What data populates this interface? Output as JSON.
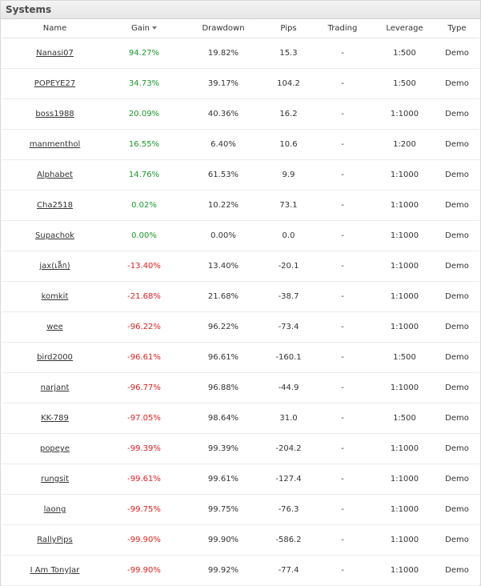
{
  "panel": {
    "title": "Systems"
  },
  "columns": {
    "name": "Name",
    "gain": "Gain",
    "drawdown": "Drawdown",
    "pips": "Pips",
    "trading": "Trading",
    "leverage": "Leverage",
    "type": "Type"
  },
  "colors": {
    "positive": "#1a9a2b",
    "negative": "#e02020"
  },
  "rows": [
    {
      "name": "Nanasi07",
      "gain": "94.27%",
      "sign": "pos",
      "drawdown": "19.82%",
      "pips": "15.3",
      "trading": "-",
      "leverage": "1:500",
      "type": "Demo"
    },
    {
      "name": "POPEYE27",
      "gain": "34.73%",
      "sign": "pos",
      "drawdown": "39.17%",
      "pips": "104.2",
      "trading": "-",
      "leverage": "1:500",
      "type": "Demo"
    },
    {
      "name": "boss1988",
      "gain": "20.09%",
      "sign": "pos",
      "drawdown": "40.36%",
      "pips": "16.2",
      "trading": "-",
      "leverage": "1:1000",
      "type": "Demo"
    },
    {
      "name": "manmenthol",
      "gain": "16.55%",
      "sign": "pos",
      "drawdown": "6.40%",
      "pips": "10.6",
      "trading": "-",
      "leverage": "1:200",
      "type": "Demo"
    },
    {
      "name": "Alphabet",
      "gain": "14.76%",
      "sign": "pos",
      "drawdown": "61.53%",
      "pips": "9.9",
      "trading": "-",
      "leverage": "1:1000",
      "type": "Demo"
    },
    {
      "name": "Cha2518",
      "gain": "0.02%",
      "sign": "pos",
      "drawdown": "10.22%",
      "pips": "73.1",
      "trading": "-",
      "leverage": "1:1000",
      "type": "Demo"
    },
    {
      "name": "Supachok",
      "gain": "0.00%",
      "sign": "zero",
      "drawdown": "0.00%",
      "pips": "0.0",
      "trading": "-",
      "leverage": "1:1000",
      "type": "Demo"
    },
    {
      "name": "jax(เล็ก)",
      "gain": "-13.40%",
      "sign": "neg",
      "drawdown": "13.40%",
      "pips": "-20.1",
      "trading": "-",
      "leverage": "1:1000",
      "type": "Demo"
    },
    {
      "name": "komkit",
      "gain": "-21.68%",
      "sign": "neg",
      "drawdown": "21.68%",
      "pips": "-38.7",
      "trading": "-",
      "leverage": "1:1000",
      "type": "Demo"
    },
    {
      "name": "wee",
      "gain": "-96.22%",
      "sign": "neg",
      "drawdown": "96.22%",
      "pips": "-73.4",
      "trading": "-",
      "leverage": "1:1000",
      "type": "Demo"
    },
    {
      "name": "bird2000",
      "gain": "-96.61%",
      "sign": "neg",
      "drawdown": "96.61%",
      "pips": "-160.1",
      "trading": "-",
      "leverage": "1:500",
      "type": "Demo"
    },
    {
      "name": "narjant",
      "gain": "-96.77%",
      "sign": "neg",
      "drawdown": "96.88%",
      "pips": "-44.9",
      "trading": "-",
      "leverage": "1:1000",
      "type": "Demo"
    },
    {
      "name": "KK-789",
      "gain": "-97.05%",
      "sign": "neg",
      "drawdown": "98.64%",
      "pips": "31.0",
      "trading": "-",
      "leverage": "1:500",
      "type": "Demo"
    },
    {
      "name": "popeye",
      "gain": "-99.39%",
      "sign": "neg",
      "drawdown": "99.39%",
      "pips": "-204.2",
      "trading": "-",
      "leverage": "1:1000",
      "type": "Demo"
    },
    {
      "name": "rungsit",
      "gain": "-99.61%",
      "sign": "neg",
      "drawdown": "99.61%",
      "pips": "-127.4",
      "trading": "-",
      "leverage": "1:1000",
      "type": "Demo"
    },
    {
      "name": "laong",
      "gain": "-99.75%",
      "sign": "neg",
      "drawdown": "99.75%",
      "pips": "-76.3",
      "trading": "-",
      "leverage": "1:1000",
      "type": "Demo"
    },
    {
      "name": "RallyPips",
      "gain": "-99.90%",
      "sign": "neg",
      "drawdown": "99.90%",
      "pips": "-586.2",
      "trading": "-",
      "leverage": "1:1000",
      "type": "Demo"
    },
    {
      "name": "I Am TonyJar",
      "gain": "-99.90%",
      "sign": "neg",
      "drawdown": "99.92%",
      "pips": "-77.4",
      "trading": "-",
      "leverage": "1:1000",
      "type": "Demo"
    }
  ]
}
